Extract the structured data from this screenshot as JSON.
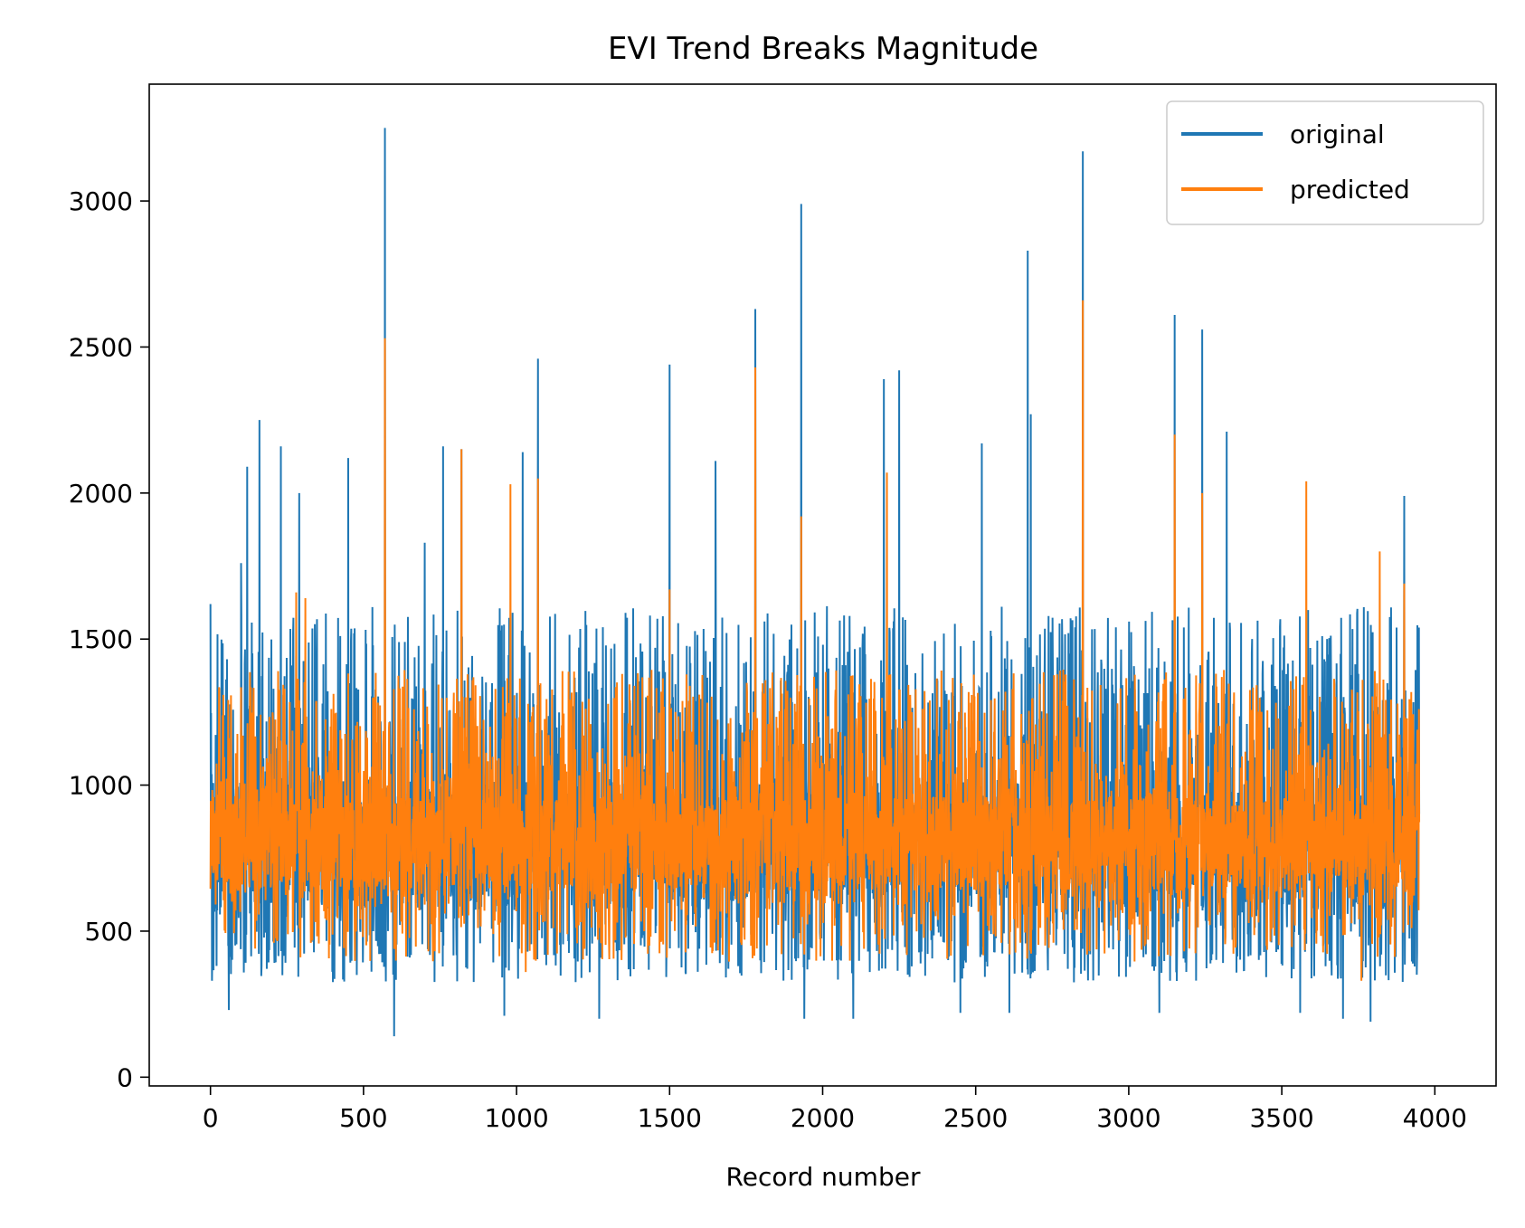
{
  "chart_data": {
    "type": "line",
    "title": "EVI Trend Breaks Magnitude",
    "xlabel": "Record number",
    "ylabel": "",
    "xlim": [
      -200,
      4200
    ],
    "ylim": [
      -30,
      3400
    ],
    "x_ticks": [
      0,
      500,
      1000,
      1500,
      2000,
      2500,
      3000,
      3500,
      4000
    ],
    "y_ticks": [
      0,
      500,
      1000,
      1500,
      2000,
      2500,
      3000
    ],
    "grid": false,
    "legend_position": "top-right",
    "record_count": 3950,
    "series": [
      {
        "name": "original",
        "color": "#1f77b4",
        "baseline": 800,
        "typical_range": [
          450,
          1200
        ],
        "spikes": [
          [
            0,
            1620
          ],
          [
            5,
            330
          ],
          [
            60,
            230
          ],
          [
            100,
            1760
          ],
          [
            120,
            2090
          ],
          [
            160,
            2250
          ],
          [
            230,
            2160
          ],
          [
            290,
            2000
          ],
          [
            450,
            2120
          ],
          [
            570,
            3250
          ],
          [
            600,
            140
          ],
          [
            700,
            1830
          ],
          [
            760,
            2160
          ],
          [
            820,
            2150
          ],
          [
            960,
            210
          ],
          [
            1020,
            2140
          ],
          [
            1070,
            2460
          ],
          [
            1270,
            200
          ],
          [
            1500,
            2440
          ],
          [
            1650,
            2110
          ],
          [
            1780,
            2630
          ],
          [
            1930,
            2990
          ],
          [
            1940,
            200
          ],
          [
            2100,
            200
          ],
          [
            2200,
            2390
          ],
          [
            2250,
            2420
          ],
          [
            2450,
            220
          ],
          [
            2520,
            2170
          ],
          [
            2610,
            220
          ],
          [
            2670,
            2830
          ],
          [
            2680,
            2270
          ],
          [
            2850,
            3170
          ],
          [
            3100,
            220
          ],
          [
            3150,
            2610
          ],
          [
            3240,
            2560
          ],
          [
            3320,
            2210
          ],
          [
            3560,
            220
          ],
          [
            3700,
            200
          ],
          [
            3790,
            190
          ],
          [
            3900,
            1990
          ]
        ]
      },
      {
        "name": "predicted",
        "color": "#ff7f0e",
        "baseline": 800,
        "typical_range": [
          560,
          1100
        ],
        "spikes": [
          [
            280,
            1660
          ],
          [
            310,
            1640
          ],
          [
            570,
            2530
          ],
          [
            820,
            2150
          ],
          [
            980,
            2030
          ],
          [
            1070,
            2050
          ],
          [
            1500,
            1670
          ],
          [
            1780,
            2430
          ],
          [
            1930,
            1920
          ],
          [
            2210,
            2070
          ],
          [
            2850,
            2660
          ],
          [
            3150,
            2200
          ],
          [
            3240,
            2000
          ],
          [
            3580,
            2040
          ],
          [
            3820,
            1800
          ],
          [
            3900,
            1690
          ],
          [
            1030,
            360
          ],
          [
            1940,
            420
          ],
          [
            3760,
            330
          ]
        ]
      }
    ]
  }
}
